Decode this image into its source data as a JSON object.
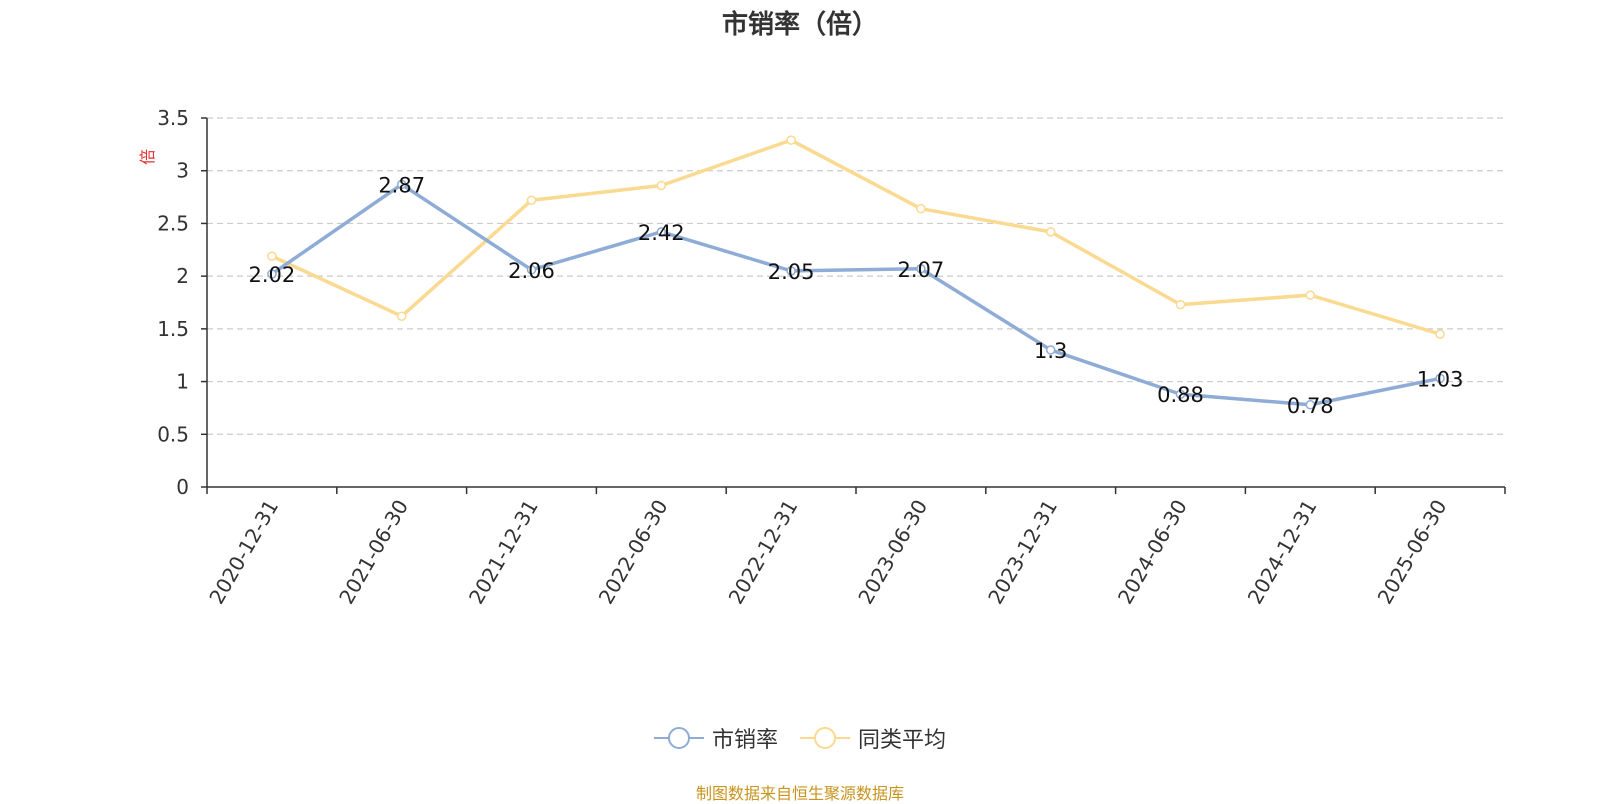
{
  "chart_data": {
    "type": "line",
    "title": "市销率（倍）",
    "ylabel": "倍",
    "xlabel": "",
    "ylim": [
      0,
      3.5
    ],
    "yticks": [
      0,
      0.5,
      1,
      1.5,
      2,
      2.5,
      3,
      3.5
    ],
    "categories": [
      "2020-12-31",
      "2021-06-30",
      "2021-12-31",
      "2022-06-30",
      "2022-12-31",
      "2023-06-30",
      "2023-12-31",
      "2024-06-30",
      "2024-12-31",
      "2025-06-30"
    ],
    "series": [
      {
        "name": "市销率",
        "color": "#8eacd6",
        "values": [
          2.02,
          2.87,
          2.06,
          2.42,
          2.05,
          2.07,
          1.3,
          0.88,
          0.78,
          1.03
        ],
        "data_labels": [
          "2.02",
          "2.87",
          "2.06",
          "2.42",
          "2.05",
          "2.07",
          "1.3",
          "0.88",
          "0.78",
          "1.03"
        ]
      },
      {
        "name": "同类平均",
        "color": "#fad990",
        "values": [
          2.19,
          1.62,
          2.72,
          2.86,
          3.29,
          2.64,
          2.42,
          1.73,
          1.82,
          1.45
        ]
      }
    ],
    "grid": "horizontal-dashed",
    "legend_position": "bottom-center"
  },
  "source_text": "制图数据来自恒生聚源数据库",
  "colors": {
    "title": "#333333",
    "axis": "#333333",
    "grid": "#cccccc",
    "ylabel": "#e03030",
    "source": "#c8941e"
  }
}
